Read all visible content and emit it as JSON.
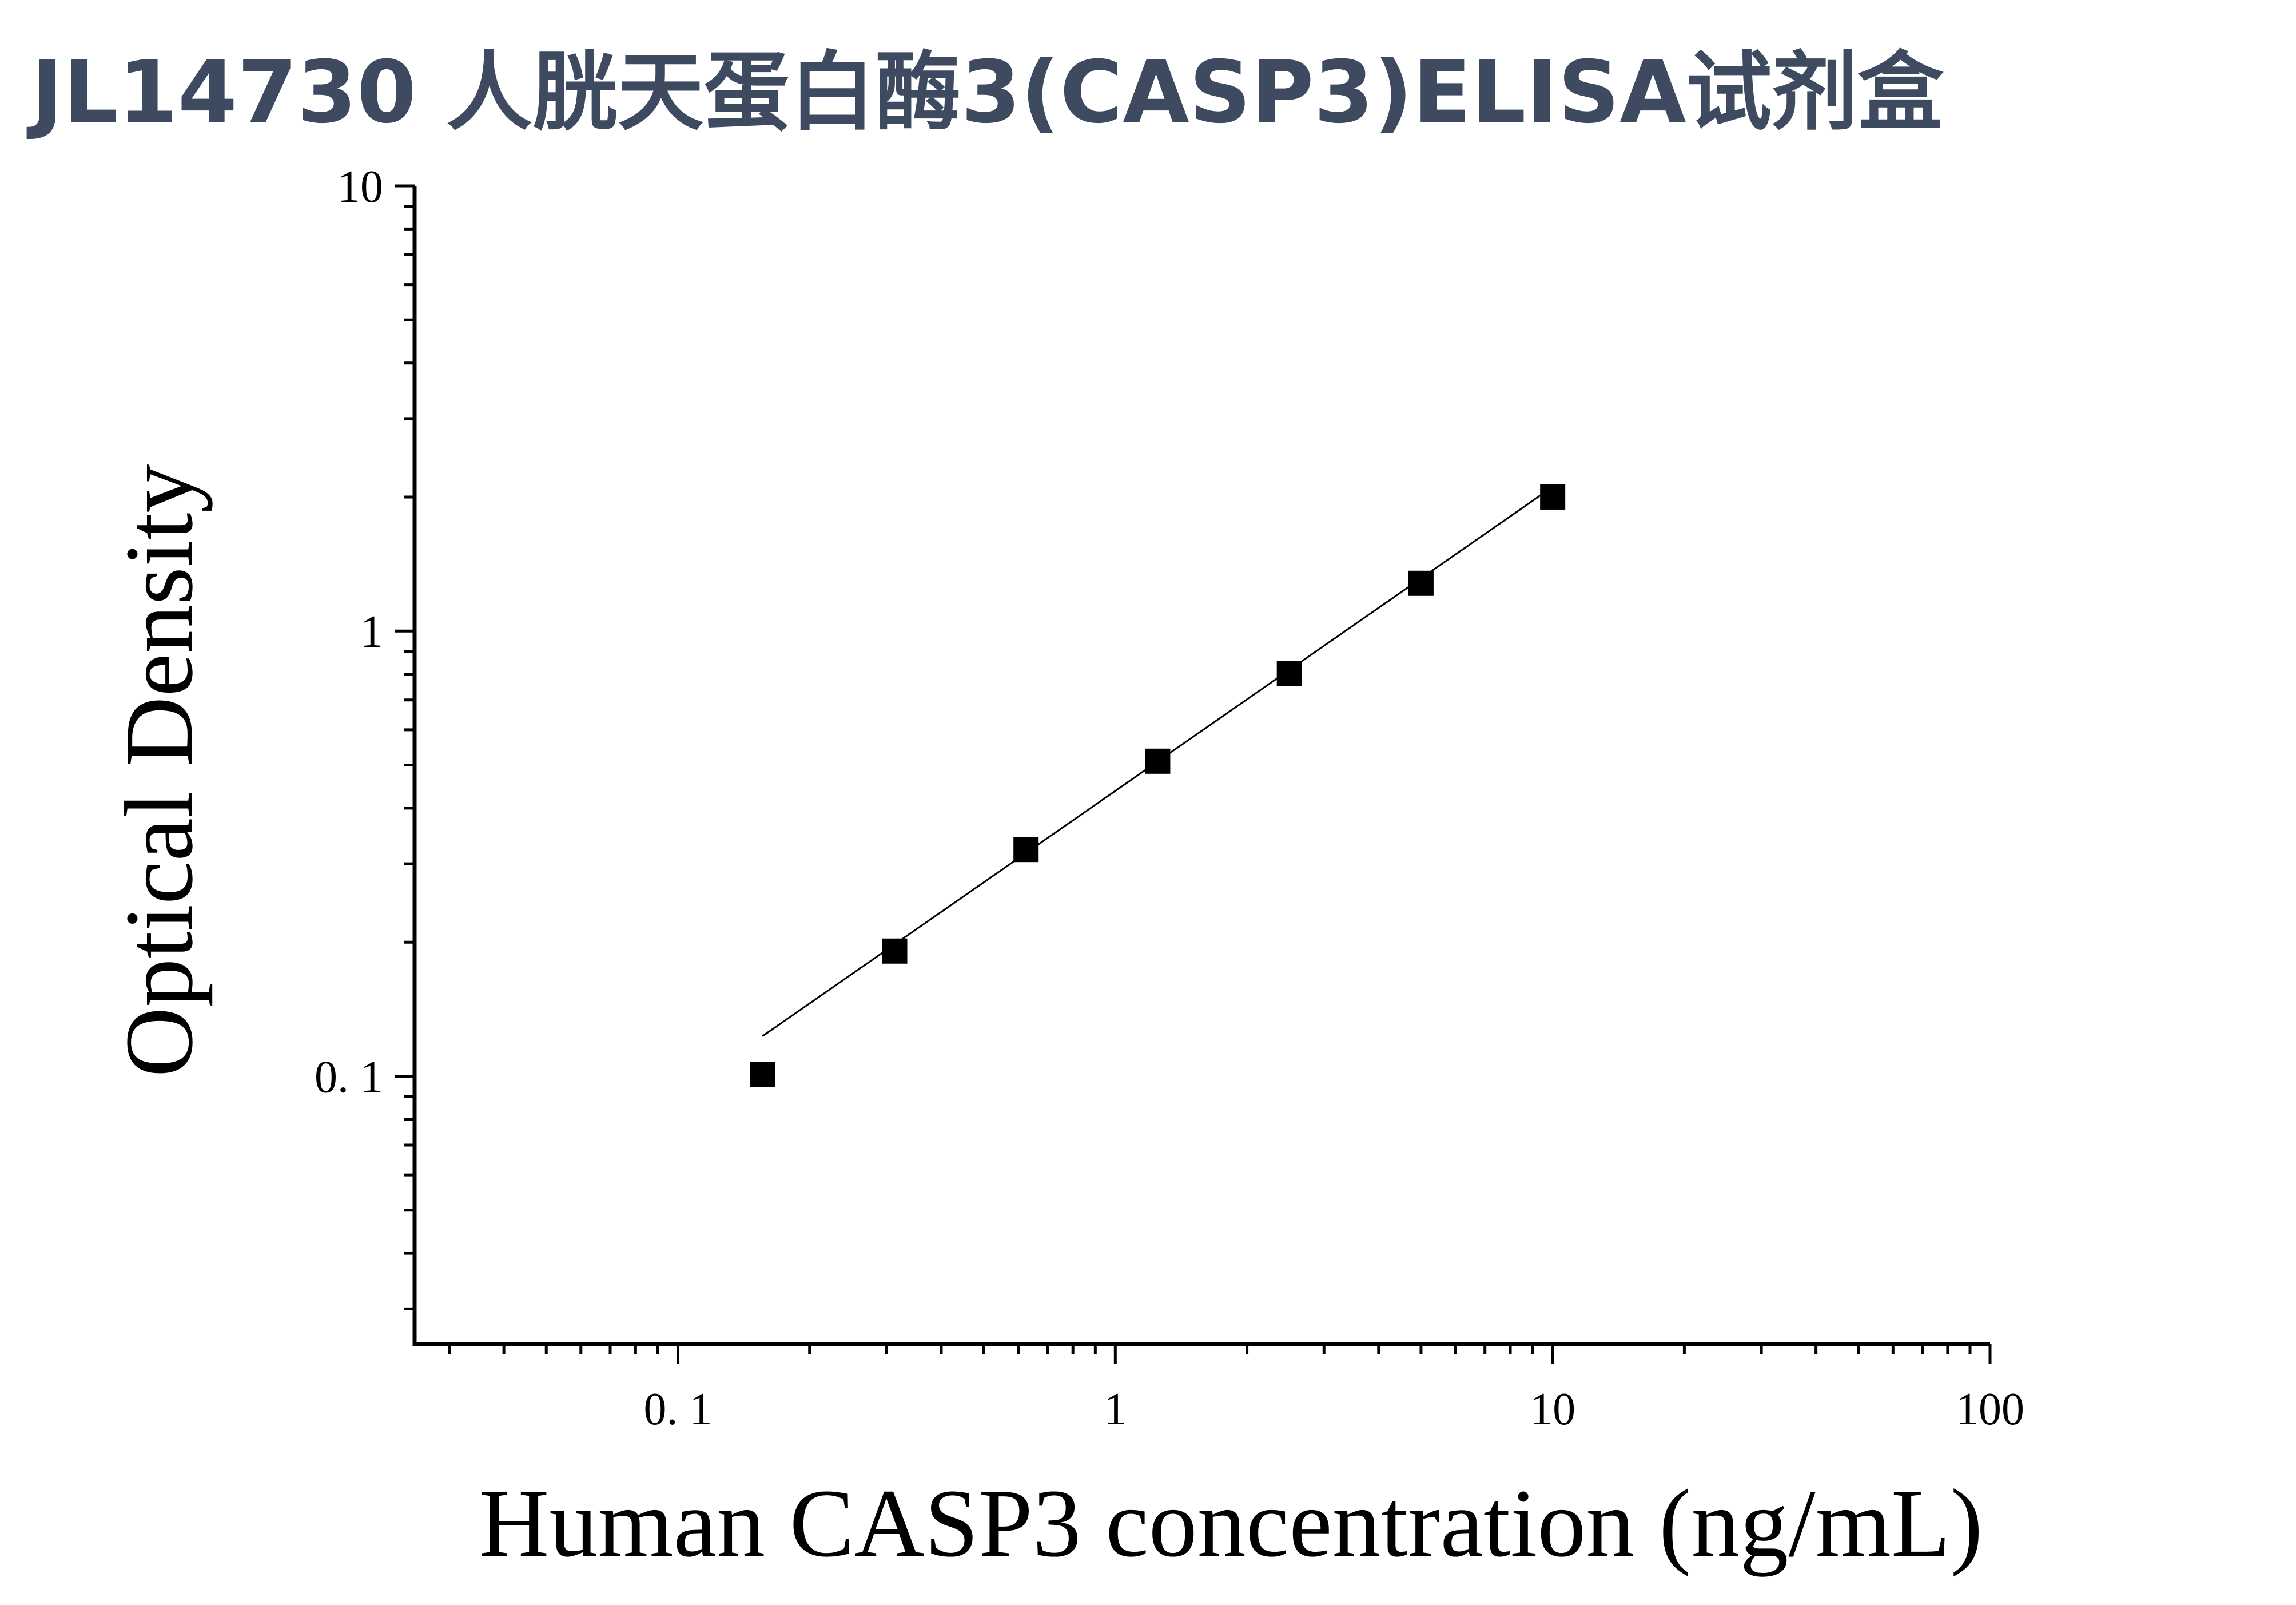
{
  "page": {
    "title": "JL14730 人胱天蛋白酶3(CASP3)ELISA试剂盒"
  },
  "chart_data": {
    "type": "scatter",
    "x_scale": "log",
    "y_scale": "log",
    "xlabel": "Human CASP3 concentration (ng/mL)",
    "ylabel": "Optical Density",
    "xlim": [
      0.025,
      100
    ],
    "ylim": [
      0.025,
      10
    ],
    "x_ticks": [
      {
        "value": 0.1,
        "label": "0. 1"
      },
      {
        "value": 1,
        "label": "1"
      },
      {
        "value": 10,
        "label": "10"
      },
      {
        "value": 100,
        "label": "100"
      }
    ],
    "y_ticks": [
      {
        "value": 0.1,
        "label": "0. 1"
      },
      {
        "value": 1,
        "label": "1"
      },
      {
        "value": 10,
        "label": "10"
      }
    ],
    "grid": false,
    "marker": "square",
    "fit_line": true,
    "colors": {
      "marker": "#000000",
      "line": "#000000",
      "title": "#3d4a5f"
    },
    "series": [
      {
        "x": [
          0.156,
          0.313,
          0.625,
          1.25,
          2.5,
          5,
          10
        ],
        "y": [
          0.101,
          0.191,
          0.323,
          0.51,
          0.802,
          1.28,
          2.0
        ]
      }
    ]
  }
}
